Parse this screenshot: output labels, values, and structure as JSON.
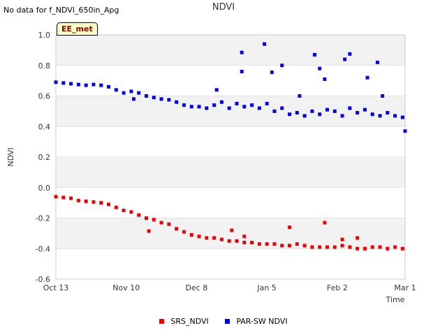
{
  "header": {
    "nodata_text": "No data for f_NDVI_650in_Apg",
    "title": "NDVI"
  },
  "badge": {
    "label": "EE_met"
  },
  "legend": {
    "items": [
      {
        "label": "SRS_NDVI",
        "color": "#ee0000"
      },
      {
        "label": "PAR-SW NDVI",
        "color": "#0000ee"
      }
    ]
  },
  "chart_data": {
    "type": "scatter",
    "title": "NDVI",
    "xlabel": "Time",
    "ylabel": "NDVI",
    "xlim": [
      "2021-10-13",
      "2022-03-01"
    ],
    "ylim": [
      -0.6,
      1.0
    ],
    "yticks": [
      -0.6,
      -0.4,
      -0.2,
      0.0,
      0.2,
      0.4,
      0.6,
      0.8,
      1.0
    ],
    "ytick_labels": [
      "-0.6",
      "-0.4",
      "-0.2",
      "0.0",
      "0.2",
      "0.4",
      "0.6",
      "0.8",
      "1.0"
    ],
    "xticks": [
      {
        "date": "2021-10-13",
        "label": "Oct 13"
      },
      {
        "date": "2021-11-10",
        "label": "Nov 10"
      },
      {
        "date": "2021-12-08",
        "label": "Dec 8"
      },
      {
        "date": "2022-01-05",
        "label": "Jan 5"
      },
      {
        "date": "2022-02-02",
        "label": "Feb 2"
      },
      {
        "date": "2022-03-01",
        "label": "Mar 1"
      }
    ],
    "grid": true,
    "alternating_bands": true,
    "legend_position": "bottom",
    "series": [
      {
        "name": "SRS_NDVI",
        "color": "#ee0000",
        "x": [
          "2021-10-13",
          "2021-10-16",
          "2021-10-19",
          "2021-10-22",
          "2021-10-25",
          "2021-10-28",
          "2021-10-31",
          "2021-11-03",
          "2021-11-06",
          "2021-11-09",
          "2021-11-12",
          "2021-11-15",
          "2021-11-18",
          "2021-11-21",
          "2021-11-24",
          "2021-11-27",
          "2021-11-30",
          "2021-12-03",
          "2021-12-06",
          "2021-12-09",
          "2021-12-12",
          "2021-12-15",
          "2021-12-18",
          "2021-12-21",
          "2021-12-24",
          "2021-12-27",
          "2021-12-30",
          "2022-01-02",
          "2022-01-05",
          "2022-01-08",
          "2022-01-11",
          "2022-01-14",
          "2022-01-17",
          "2022-01-20",
          "2022-01-23",
          "2022-01-26",
          "2022-01-29",
          "2022-02-01",
          "2022-02-04",
          "2022-02-07",
          "2022-02-10",
          "2022-02-13",
          "2022-02-16",
          "2022-02-19",
          "2022-02-22",
          "2022-02-25",
          "2022-02-28",
          "2021-11-19",
          "2021-12-22",
          "2021-12-27",
          "2022-01-14",
          "2022-01-28",
          "2022-02-04",
          "2022-02-10"
        ],
        "y": [
          -0.06,
          -0.065,
          -0.07,
          -0.085,
          -0.09,
          -0.095,
          -0.1,
          -0.11,
          -0.13,
          -0.15,
          -0.16,
          -0.18,
          -0.2,
          -0.21,
          -0.23,
          -0.24,
          -0.27,
          -0.29,
          -0.31,
          -0.32,
          -0.33,
          -0.33,
          -0.34,
          -0.35,
          -0.35,
          -0.36,
          -0.36,
          -0.37,
          -0.37,
          -0.37,
          -0.38,
          -0.38,
          -0.37,
          -0.38,
          -0.39,
          -0.39,
          -0.39,
          -0.39,
          -0.38,
          -0.39,
          -0.4,
          -0.4,
          -0.39,
          -0.39,
          -0.4,
          -0.39,
          -0.4,
          -0.285,
          -0.28,
          -0.32,
          -0.26,
          -0.23,
          -0.34,
          -0.33
        ]
      },
      {
        "name": "PAR-SW NDVI",
        "color": "#0000ee",
        "x": [
          "2021-10-13",
          "2021-10-16",
          "2021-10-19",
          "2021-10-22",
          "2021-10-25",
          "2021-10-28",
          "2021-10-31",
          "2021-11-03",
          "2021-11-06",
          "2021-11-09",
          "2021-11-12",
          "2021-11-15",
          "2021-11-18",
          "2021-11-21",
          "2021-11-24",
          "2021-11-27",
          "2021-11-30",
          "2021-12-03",
          "2021-12-06",
          "2021-12-09",
          "2021-12-12",
          "2021-12-15",
          "2021-12-18",
          "2021-12-21",
          "2021-12-24",
          "2021-12-27",
          "2021-12-30",
          "2022-01-02",
          "2022-01-05",
          "2022-01-08",
          "2022-01-11",
          "2022-01-14",
          "2022-01-17",
          "2022-01-20",
          "2022-01-23",
          "2022-01-26",
          "2022-01-29",
          "2022-02-01",
          "2022-02-04",
          "2022-02-07",
          "2022-02-10",
          "2022-02-13",
          "2022-02-16",
          "2022-02-19",
          "2022-02-22",
          "2022-02-25",
          "2022-02-28",
          "2021-12-26",
          "2021-12-26",
          "2022-01-04",
          "2022-01-07",
          "2022-01-11",
          "2022-01-18",
          "2022-01-24",
          "2022-01-26",
          "2022-01-28",
          "2022-02-05",
          "2022-02-07",
          "2022-02-14",
          "2022-02-18",
          "2022-02-20",
          "2022-03-01",
          "2021-11-13",
          "2021-12-16"
        ],
        "y": [
          0.69,
          0.685,
          0.68,
          0.675,
          0.67,
          0.675,
          0.67,
          0.66,
          0.64,
          0.62,
          0.63,
          0.62,
          0.6,
          0.59,
          0.58,
          0.575,
          0.56,
          0.54,
          0.53,
          0.53,
          0.52,
          0.54,
          0.56,
          0.52,
          0.55,
          0.53,
          0.54,
          0.52,
          0.55,
          0.5,
          0.52,
          0.48,
          0.49,
          0.47,
          0.5,
          0.48,
          0.51,
          0.5,
          0.47,
          0.52,
          0.49,
          0.51,
          0.48,
          0.47,
          0.49,
          0.47,
          0.46,
          0.885,
          0.76,
          0.94,
          0.755,
          0.8,
          0.6,
          0.87,
          0.78,
          0.71,
          0.84,
          0.875,
          0.72,
          0.82,
          0.6,
          0.37,
          0.58,
          0.64
        ]
      }
    ]
  }
}
